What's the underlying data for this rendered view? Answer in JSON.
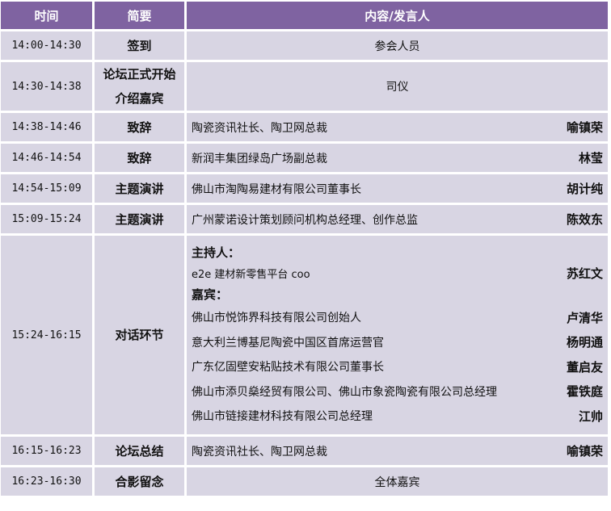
{
  "header": {
    "time": "时间",
    "summary": "简要",
    "content": "内容/发言人"
  },
  "colors": {
    "header_bg": "#7f63a1",
    "row_bg": "#d8d5e3"
  },
  "rows": [
    {
      "time": "14:00-14:30",
      "summary": "签到",
      "content": "参会人员"
    },
    {
      "time": "14:30-14:38",
      "summary_lines": [
        "论坛正式开始",
        "介绍嘉宾"
      ],
      "content": "司仪"
    },
    {
      "time": "14:38-14:46",
      "summary": "致辞",
      "content": "陶瓷资讯社长、陶卫网总裁",
      "speaker": "喻镇荣"
    },
    {
      "time": "14:46-14:54",
      "summary": "致辞",
      "content": "新润丰集团绿岛广场副总裁",
      "speaker": "林莹"
    },
    {
      "time": "14:54-15:09",
      "summary": "主题演讲",
      "content": "佛山市淘陶易建材有限公司董事长",
      "speaker": "胡计纯"
    },
    {
      "time": "15:09-15:24",
      "summary": "主题演讲",
      "content": "广州蒙诺设计策划顾问机构总经理、创作总监",
      "speaker": "陈效东"
    },
    {
      "time": "15:24-16:15",
      "summary": "对话环节",
      "host_label": "主持人：",
      "host": {
        "content": "e2e 建材新零售平台 coo",
        "speaker": "苏红文"
      },
      "guest_label": "嘉宾：",
      "guests": [
        {
          "content": "佛山市悦饰界科技有限公司创始人",
          "speaker": "卢清华"
        },
        {
          "content": "意大利兰博基尼陶瓷中国区首席运营官",
          "speaker": "杨明通"
        },
        {
          "content": "广东亿固壁安粘贴技术有限公司董事长",
          "speaker": "董启友"
        },
        {
          "content": "佛山市添贝燊经贸有限公司、佛山市象瓷陶瓷有限公司总经理",
          "speaker": "霍铁庭"
        },
        {
          "content": "佛山市链接建材科技有限公司总经理",
          "speaker": "江帅"
        }
      ]
    },
    {
      "time": "16:15-16:23",
      "summary": "论坛总结",
      "content": "陶瓷资讯社长、陶卫网总裁",
      "speaker": "喻镇荣"
    },
    {
      "time": "16:23-16:30",
      "summary": "合影留念",
      "content": "全体嘉宾"
    }
  ]
}
